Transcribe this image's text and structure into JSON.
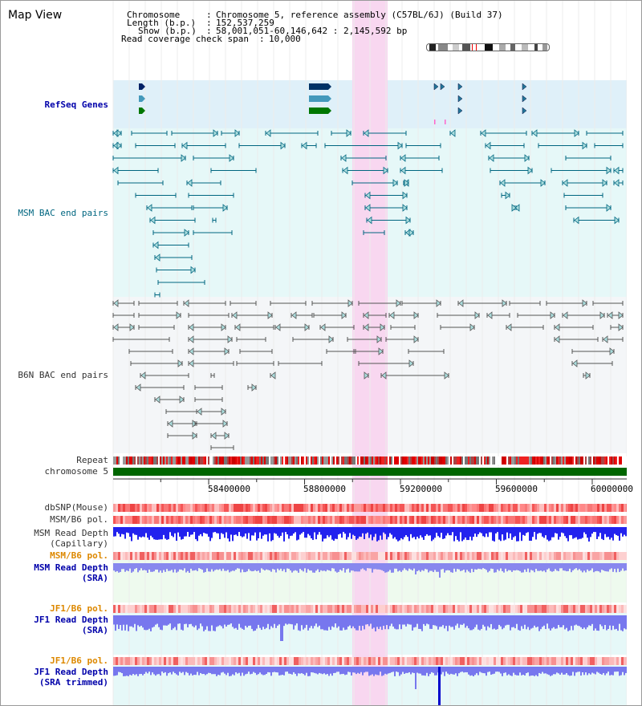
{
  "header": {
    "title": "Map View",
    "chromosome_key": "Chromosome",
    "chromosome_value": "Chromosome 5, reference assembly (C57BL/6J) (Build 37)",
    "length_key": "Length (b.p.)",
    "length_value": "152,537,259",
    "show_key": "Show (b.p.)",
    "show_value": "58,001,051-60,146,642 : 2,145,592 bp",
    "coverage_key": "Read coverage check span",
    "coverage_value": "10,000"
  },
  "tracks": {
    "refseq": "RefSeq Genes",
    "msm_bac": "MSM BAC end pairs",
    "b6n_bac": "B6N BAC end pairs",
    "repeat": "Repeat",
    "chromosome": "chromosome 5",
    "dbsnp": "dbSNP(Mouse)",
    "msm_b6_pol_1": "MSM/B6 pol.",
    "msm_read_depth_cap_1": "MSM Read Depth",
    "msm_read_depth_cap_2": "(Capillary)",
    "msm_b6_pol_2": "MSM/B6 pol.",
    "msm_read_depth_sra_1": "MSM Read Depth",
    "msm_read_depth_sra_2": "(SRA)",
    "jf1_b6_pol_1": "JF1/B6 pol.",
    "jf1_read_depth_sra_1": "JF1 Read Depth",
    "jf1_read_depth_sra_2": "(SRA)",
    "jf1_b6_pol_2": "JF1/B6 pol.",
    "jf1_read_depth_trim_1": "JF1 Read Depth",
    "jf1_read_depth_trim_2": "(SRA trimmed)"
  },
  "axis": {
    "ticks": [
      "58400000",
      "58800000",
      "59200000",
      "59600000",
      "60000000"
    ],
    "tick_values": [
      58400000,
      58800000,
      59200000,
      59600000,
      60000000
    ]
  },
  "colors": {
    "refseq_bg": "#dff0f9",
    "msm_bg": "#e6f8f8",
    "b6n_bg": "#f4f6f8",
    "highlight": "#f8d7f0",
    "msm_line": "#006680",
    "b6n_line": "#555555",
    "chrom_bar": "#006600",
    "depth_blue": "#2222ee",
    "depth_light": "#7777ee",
    "label_blue": "#0000aa",
    "label_teal": "#006680",
    "label_orange": "#dd8800"
  }
}
